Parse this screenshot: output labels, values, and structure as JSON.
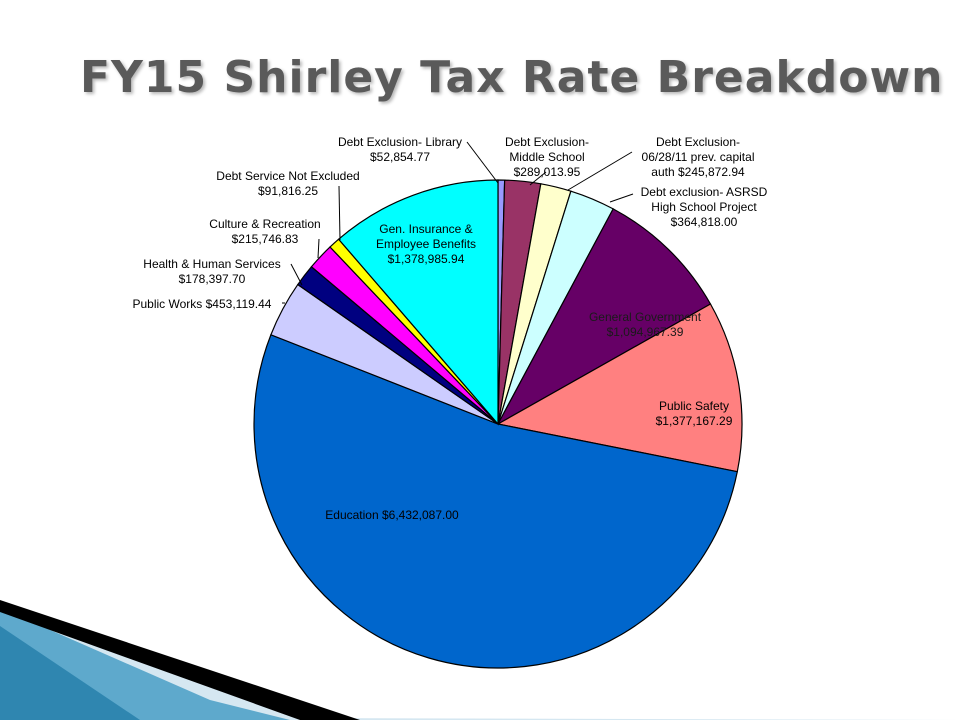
{
  "slide": {
    "title": "FY15 Shirley Tax Rate Breakdown"
  },
  "chart_data": {
    "type": "pie",
    "title": "FY15 Shirley Tax Rate Breakdown",
    "start": "12 o'clock",
    "direction": "clockwise",
    "slices": [
      {
        "label": "Debt Exclusion- Library",
        "value": 52854.77,
        "value_text": "$52,854.77",
        "color": "#9999ff"
      },
      {
        "label": "Debt Exclusion- Middle School",
        "value": 289013.95,
        "value_text": "$289,013.95",
        "color": "#993366"
      },
      {
        "label": "Debt Exclusion- 06/28/11 prev. capital auth",
        "value": 245872.94,
        "value_text": "$245,872.94",
        "color": "#ffffcc"
      },
      {
        "label": "Debt exclusion- ASRSD High School Project",
        "value": 364818.0,
        "value_text": "$364,818.00",
        "color": "#ccffff"
      },
      {
        "label": "General Government",
        "value": 1094967.39,
        "value_text": "$1,094,967.39",
        "color": "#660066"
      },
      {
        "label": "Public Safety",
        "value": 1377167.29,
        "value_text": "$1,377,167.29",
        "color": "#ff8080"
      },
      {
        "label": "Education",
        "value": 6432087.0,
        "value_text": "$6,432,087.00",
        "color": "#0066cc"
      },
      {
        "label": "Public Works",
        "value": 453119.44,
        "value_text": "$453,119.44",
        "color": "#ccccff"
      },
      {
        "label": "Health & Human Services",
        "value": 178397.7,
        "value_text": "$178,397.70",
        "color": "#000080"
      },
      {
        "label": "Culture & Recreation",
        "value": 215746.83,
        "value_text": "$215,746.83",
        "color": "#ff00ff"
      },
      {
        "label": "Debt Service Not Excluded",
        "value": 91816.25,
        "value_text": "$91,816.25",
        "color": "#ffff00"
      },
      {
        "label": "Gen. Insurance & Employee Benefits",
        "value": 1378985.94,
        "value_text": "$1,378,985.94",
        "color": "#00ffff"
      }
    ]
  }
}
